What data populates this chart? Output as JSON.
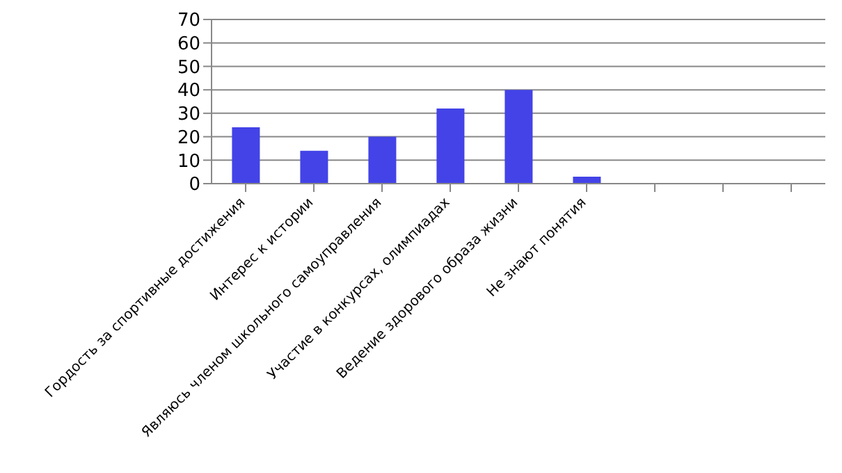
{
  "chart_data": {
    "type": "bar",
    "categories": [
      "Гордость за спортивные достижения",
      "Интерес к истории",
      "Являюсь членом школьного самоуправления",
      "Участие в конкурсах, олимпиадах",
      "Ведение здорового образа жизни",
      "Не знают понятия",
      null,
      null,
      null
    ],
    "values": [
      24,
      14,
      20,
      32,
      40,
      3,
      null,
      null,
      null
    ],
    "color": "#4343e8",
    "ylim": [
      0,
      70
    ],
    "yticks": [
      0,
      10,
      20,
      30,
      40,
      50,
      60,
      70
    ],
    "grid": "y",
    "legend": false
  }
}
